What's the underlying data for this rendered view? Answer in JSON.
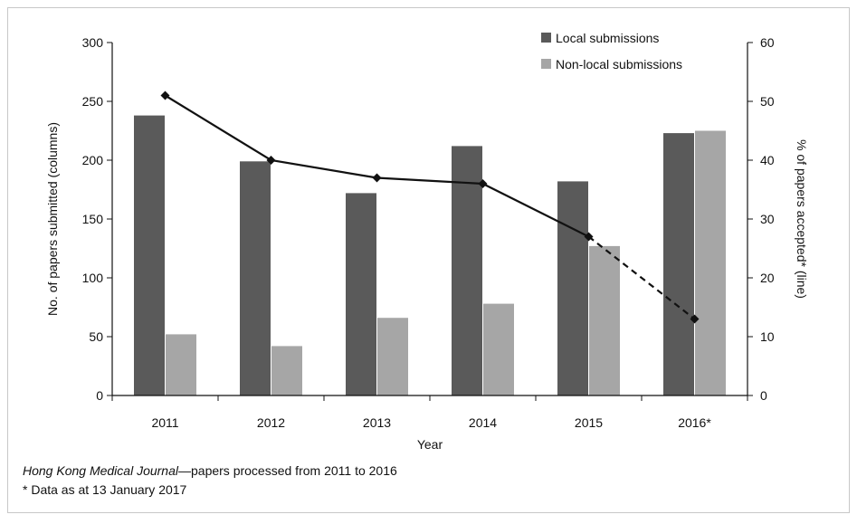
{
  "chart_data": {
    "type": "bar",
    "categories": [
      "2011",
      "2012",
      "2013",
      "2014",
      "2015",
      "2016*"
    ],
    "series": [
      {
        "name": "Local submissions",
        "type": "bar",
        "axis": "left",
        "color": "#5a5a5a",
        "values": [
          238,
          199,
          172,
          212,
          182,
          223
        ]
      },
      {
        "name": "Non-local submissions",
        "type": "bar",
        "axis": "left",
        "color": "#a6a6a6",
        "values": [
          52,
          42,
          66,
          78,
          127,
          225
        ]
      },
      {
        "type": "line",
        "axis": "right",
        "color": "#111111",
        "values": [
          51,
          40,
          37,
          36,
          27,
          13
        ],
        "dashed_last_segment_from_index": 4
      }
    ],
    "xlabel": "Year",
    "ylabel": "No. of papers submitted (columns)",
    "y2label": "% of papers accepted* (line)",
    "ylim": [
      0,
      300
    ],
    "y2lim": [
      0,
      60
    ],
    "yticks": [
      "0",
      "50",
      "100",
      "150",
      "200",
      "250",
      "300"
    ],
    "y2ticks": [
      "0",
      "10",
      "20",
      "30",
      "40",
      "50",
      "60"
    ],
    "grid": false,
    "legend_position": "top-right"
  },
  "caption": {
    "title_italic": "Hong Kong Medical Journal",
    "title_rest": "—papers processed from 2011 to 2016",
    "note": "* Data as at 13 January 2017"
  }
}
